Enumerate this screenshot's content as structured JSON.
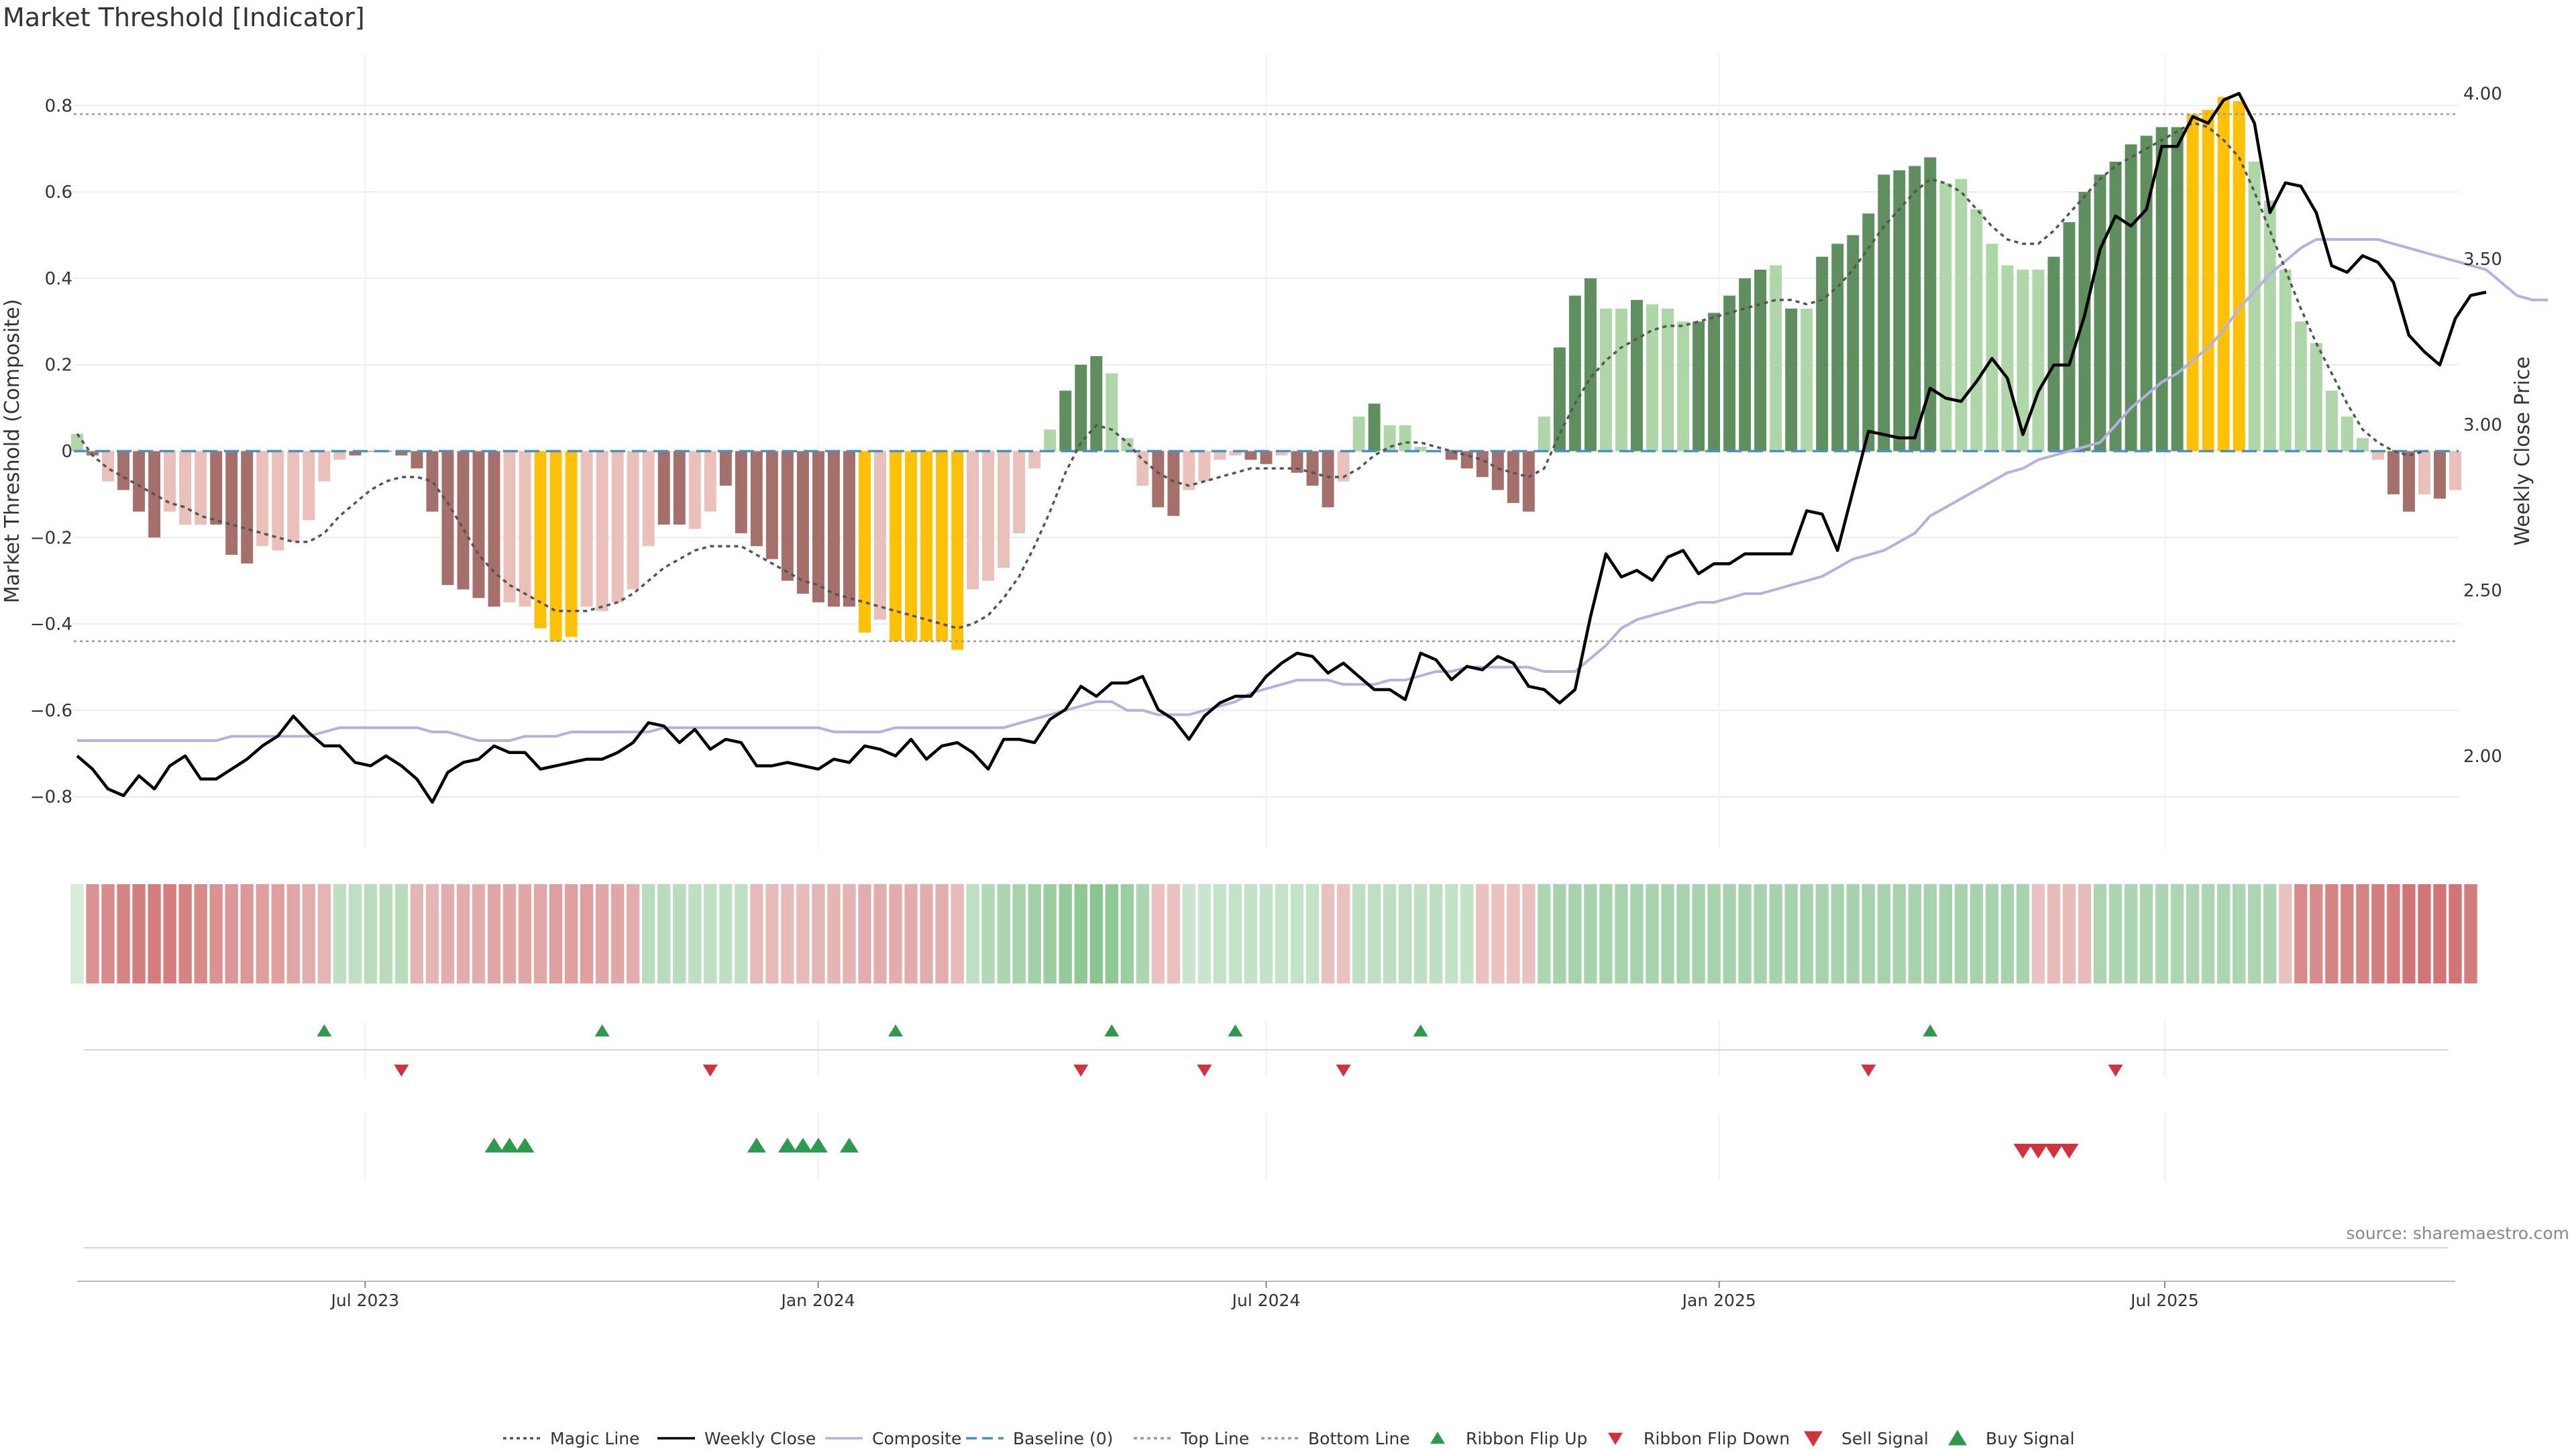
{
  "title": "Market Threshold [Indicator]",
  "source": "source: sharemaestro.com",
  "colors": {
    "strong_pos": "#5f8f5f",
    "weak_pos": "#aed6a8",
    "strong_neg": "#a5706b",
    "weak_neg": "#eac0bb",
    "extreme": "#ffc107",
    "close": "#000000",
    "composite": "#b6b0e0",
    "magic": "#555555",
    "baseline": "#4c8fc0",
    "threshold": "#999999",
    "buy": "#2e9a4e",
    "sell": "#d1333e"
  },
  "chart_data": {
    "type": "bar",
    "left_axis": {
      "label": "Market Threshold (Composite)",
      "ylim": [
        -0.92,
        0.92
      ],
      "ticks": [
        -0.8,
        -0.6,
        -0.4,
        -0.2,
        0,
        0.2,
        0.4,
        0.6,
        0.8
      ],
      "tick_labels": [
        "−0.8",
        "−0.6",
        "−0.4",
        "−0.2",
        "0",
        "0.2",
        "0.4",
        "0.6",
        "0.8"
      ]
    },
    "right_axis": {
      "label": "Weekly Close Price",
      "ylim": [
        1.72,
        4.12
      ],
      "ticks": [
        2.0,
        2.5,
        3.0,
        3.5,
        4.0
      ],
      "tick_labels": [
        "2.00",
        "2.50",
        "3.00",
        "3.50",
        "4.00"
      ]
    },
    "x_axis": {
      "start": "2023-03-06",
      "end": "2025-10-27",
      "ticks": [
        "2023-07-01",
        "2024-01-01",
        "2024-07-01",
        "2025-01-01",
        "2025-07-01"
      ],
      "tick_labels": [
        "Jul 2023",
        "Jan 2024",
        "Jul 2024",
        "Jan 2025",
        "Jul 2025"
      ]
    },
    "top_line": 0.78,
    "bottom_line": -0.44,
    "composite_bars": [
      0.04,
      -0.01,
      -0.07,
      -0.09,
      -0.14,
      -0.2,
      -0.14,
      -0.17,
      -0.17,
      -0.17,
      -0.24,
      -0.26,
      -0.22,
      -0.23,
      -0.21,
      -0.16,
      -0.07,
      -0.02,
      -0.01,
      0,
      0,
      -0.01,
      -0.04,
      -0.14,
      -0.31,
      -0.32,
      -0.34,
      -0.36,
      -0.35,
      -0.36,
      -0.41,
      -0.44,
      -0.43,
      -0.36,
      -0.37,
      -0.35,
      -0.32,
      -0.22,
      -0.17,
      -0.17,
      -0.18,
      -0.14,
      -0.08,
      -0.19,
      -0.22,
      -0.25,
      -0.3,
      -0.33,
      -0.35,
      -0.36,
      -0.36,
      -0.42,
      -0.39,
      -0.44,
      -0.44,
      -0.44,
      -0.44,
      -0.46,
      -0.32,
      -0.3,
      -0.27,
      -0.19,
      -0.04,
      0.05,
      0.14,
      0.2,
      0.22,
      0.18,
      0.03,
      -0.08,
      -0.13,
      -0.15,
      -0.09,
      -0.07,
      -0.02,
      -0.01,
      -0.02,
      -0.03,
      -0.01,
      -0.05,
      -0.08,
      -0.13,
      -0.07,
      0.08,
      0.11,
      0.06,
      0.06,
      0.01,
      0,
      -0.02,
      -0.04,
      -0.06,
      -0.09,
      -0.12,
      -0.14,
      0.08,
      0.24,
      0.36,
      0.4,
      0.33,
      0.33,
      0.35,
      0.34,
      0.33,
      0.3,
      0.3,
      0.32,
      0.36,
      0.4,
      0.42,
      0.43,
      0.33,
      0.33,
      0.45,
      0.48,
      0.5,
      0.55,
      0.64,
      0.65,
      0.66,
      0.68,
      0.62,
      0.63,
      0.56,
      0.48,
      0.43,
      0.42,
      0.42,
      0.45,
      0.53,
      0.6,
      0.64,
      0.67,
      0.71,
      0.73,
      0.75,
      0.75,
      0.78,
      0.79,
      0.82,
      0.81,
      0.67,
      0.58,
      0.42,
      0.3,
      0.25,
      0.14,
      0.08,
      0.03,
      -0.02,
      -0.1,
      -0.14,
      -0.1,
      -0.11,
      -0.09
    ],
    "bar_colors": [
      "weak_pos",
      "strong_neg",
      "weak_neg",
      "strong_neg",
      "strong_neg",
      "strong_neg",
      "weak_neg",
      "weak_neg",
      "weak_neg",
      "strong_neg",
      "strong_neg",
      "strong_neg",
      "weak_neg",
      "weak_neg",
      "weak_neg",
      "weak_neg",
      "weak_neg",
      "weak_neg",
      "strong_neg",
      "strong_neg",
      "strong_neg",
      "strong_neg",
      "strong_neg",
      "strong_neg",
      "strong_neg",
      "strong_neg",
      "strong_neg",
      "strong_neg",
      "weak_neg",
      "weak_neg",
      "extreme",
      "extreme",
      "extreme",
      "weak_neg",
      "weak_neg",
      "weak_neg",
      "weak_neg",
      "weak_neg",
      "strong_neg",
      "strong_neg",
      "weak_neg",
      "weak_neg",
      "strong_neg",
      "strong_neg",
      "strong_neg",
      "strong_neg",
      "strong_neg",
      "strong_neg",
      "strong_neg",
      "strong_neg",
      "strong_neg",
      "extreme",
      "weak_neg",
      "extreme",
      "extreme",
      "extreme",
      "extreme",
      "extreme",
      "weak_neg",
      "weak_neg",
      "weak_neg",
      "weak_neg",
      "weak_neg",
      "weak_pos",
      "strong_pos",
      "strong_pos",
      "strong_pos",
      "weak_pos",
      "weak_pos",
      "weak_neg",
      "strong_neg",
      "strong_neg",
      "weak_neg",
      "weak_neg",
      "weak_neg",
      "weak_neg",
      "strong_neg",
      "strong_neg",
      "weak_neg",
      "strong_neg",
      "strong_neg",
      "strong_neg",
      "weak_neg",
      "weak_pos",
      "strong_pos",
      "weak_pos",
      "weak_pos",
      "weak_pos",
      "weak_pos",
      "strong_neg",
      "strong_neg",
      "strong_neg",
      "strong_neg",
      "strong_neg",
      "strong_neg",
      "weak_pos",
      "strong_pos",
      "strong_pos",
      "strong_pos",
      "weak_pos",
      "weak_pos",
      "strong_pos",
      "weak_pos",
      "weak_pos",
      "weak_pos",
      "strong_pos",
      "strong_pos",
      "strong_pos",
      "strong_pos",
      "strong_pos",
      "weak_pos",
      "strong_pos",
      "weak_pos",
      "strong_pos",
      "strong_pos",
      "strong_pos",
      "strong_pos",
      "strong_pos",
      "strong_pos",
      "strong_pos",
      "strong_pos",
      "weak_pos",
      "weak_pos",
      "weak_pos",
      "weak_pos",
      "weak_pos",
      "weak_pos",
      "weak_pos",
      "strong_pos",
      "strong_pos",
      "strong_pos",
      "strong_pos",
      "strong_pos",
      "strong_pos",
      "strong_pos",
      "strong_pos",
      "strong_pos",
      "extreme",
      "extreme",
      "extreme",
      "extreme",
      "weak_pos",
      "weak_pos",
      "weak_pos",
      "weak_pos",
      "weak_pos",
      "weak_pos",
      "weak_pos",
      "weak_pos",
      "weak_neg",
      "strong_neg",
      "strong_neg",
      "weak_neg",
      "strong_neg",
      "weak_neg"
    ],
    "weekly_close": [
      2.0,
      1.96,
      1.9,
      1.88,
      1.94,
      1.9,
      1.97,
      2.0,
      1.93,
      1.93,
      1.96,
      1.99,
      2.03,
      2.06,
      2.12,
      2.07,
      2.03,
      2.03,
      1.98,
      1.97,
      2.0,
      1.97,
      1.93,
      1.86,
      1.95,
      1.98,
      1.99,
      2.03,
      2.01,
      2.01,
      1.96,
      1.97,
      1.98,
      1.99,
      1.99,
      2.01,
      2.04,
      2.1,
      2.09,
      2.04,
      2.08,
      2.02,
      2.05,
      2.04,
      1.97,
      1.97,
      1.98,
      1.97,
      1.96,
      1.99,
      1.98,
      2.03,
      2.02,
      2.0,
      2.05,
      1.99,
      2.03,
      2.04,
      2.01,
      1.96,
      2.05,
      2.05,
      2.04,
      2.11,
      2.14,
      2.21,
      2.18,
      2.22,
      2.22,
      2.24,
      2.14,
      2.11,
      2.05,
      2.12,
      2.16,
      2.18,
      2.18,
      2.24,
      2.28,
      2.31,
      2.3,
      2.25,
      2.28,
      2.24,
      2.2,
      2.2,
      2.17,
      2.31,
      2.29,
      2.23,
      2.27,
      2.26,
      2.3,
      2.28,
      2.21,
      2.2,
      2.16,
      2.2,
      2.42,
      2.61,
      2.54,
      2.56,
      2.53,
      2.6,
      2.62,
      2.55,
      2.58,
      2.58,
      2.61,
      2.61,
      2.61,
      2.61,
      2.74,
      2.73,
      2.62,
      2.8,
      2.98,
      2.97,
      2.96,
      2.96,
      3.11,
      3.08,
      3.07,
      3.13,
      3.2,
      3.14,
      2.97,
      3.1,
      3.18,
      3.18,
      3.33,
      3.53,
      3.63,
      3.6,
      3.65,
      3.84,
      3.84,
      3.93,
      3.91,
      3.98,
      4.0,
      3.91,
      3.64,
      3.73,
      3.72,
      3.64,
      3.48,
      3.46,
      3.51,
      3.49,
      3.43,
      3.27,
      3.22,
      3.18,
      3.32,
      3.39,
      3.4
    ],
    "composite_line": [
      -0.67,
      -0.67,
      -0.67,
      -0.67,
      -0.67,
      -0.67,
      -0.67,
      -0.67,
      -0.67,
      -0.67,
      -0.66,
      -0.66,
      -0.66,
      -0.66,
      -0.66,
      -0.66,
      -0.65,
      -0.64,
      -0.64,
      -0.64,
      -0.64,
      -0.64,
      -0.64,
      -0.65,
      -0.65,
      -0.66,
      -0.67,
      -0.67,
      -0.67,
      -0.66,
      -0.66,
      -0.66,
      -0.65,
      -0.65,
      -0.65,
      -0.65,
      -0.65,
      -0.65,
      -0.64,
      -0.64,
      -0.64,
      -0.64,
      -0.64,
      -0.64,
      -0.64,
      -0.64,
      -0.64,
      -0.64,
      -0.64,
      -0.65,
      -0.65,
      -0.65,
      -0.65,
      -0.64,
      -0.64,
      -0.64,
      -0.64,
      -0.64,
      -0.64,
      -0.64,
      -0.64,
      -0.63,
      -0.62,
      -0.61,
      -0.6,
      -0.59,
      -0.58,
      -0.58,
      -0.6,
      -0.6,
      -0.61,
      -0.61,
      -0.61,
      -0.6,
      -0.59,
      -0.58,
      -0.56,
      -0.55,
      -0.54,
      -0.53,
      -0.53,
      -0.53,
      -0.54,
      -0.54,
      -0.54,
      -0.53,
      -0.53,
      -0.52,
      -0.51,
      -0.51,
      -0.5,
      -0.5,
      -0.5,
      -0.5,
      -0.5,
      -0.51,
      -0.51,
      -0.51,
      -0.48,
      -0.45,
      -0.41,
      -0.39,
      -0.38,
      -0.37,
      -0.36,
      -0.35,
      -0.35,
      -0.34,
      -0.33,
      -0.33,
      -0.32,
      -0.31,
      -0.3,
      -0.29,
      -0.27,
      -0.25,
      -0.24,
      -0.23,
      -0.21,
      -0.19,
      -0.15,
      -0.13,
      -0.11,
      -0.09,
      -0.07,
      -0.05,
      -0.04,
      -0.02,
      -0.01,
      0,
      0.01,
      0.02,
      0.06,
      0.1,
      0.13,
      0.16,
      0.18,
      0.21,
      0.24,
      0.28,
      0.33,
      0.37,
      0.41,
      0.44,
      0.47,
      0.49,
      0.49,
      0.49,
      0.49,
      0.49,
      0.48,
      0.47,
      0.46,
      0.45,
      0.44,
      0.43,
      0.42,
      0.39,
      0.36,
      0.35,
      0.35
    ],
    "magic_line": [
      0.04,
      -0.01,
      -0.04,
      -0.06,
      -0.08,
      -0.1,
      -0.12,
      -0.13,
      -0.15,
      -0.16,
      -0.17,
      -0.18,
      -0.19,
      -0.2,
      -0.21,
      -0.21,
      -0.19,
      -0.15,
      -0.12,
      -0.09,
      -0.07,
      -0.06,
      -0.06,
      -0.07,
      -0.12,
      -0.18,
      -0.24,
      -0.28,
      -0.31,
      -0.33,
      -0.35,
      -0.37,
      -0.37,
      -0.37,
      -0.36,
      -0.35,
      -0.33,
      -0.3,
      -0.27,
      -0.25,
      -0.23,
      -0.22,
      -0.22,
      -0.22,
      -0.24,
      -0.26,
      -0.28,
      -0.3,
      -0.31,
      -0.33,
      -0.34,
      -0.35,
      -0.36,
      -0.37,
      -0.38,
      -0.39,
      -0.4,
      -0.41,
      -0.4,
      -0.38,
      -0.34,
      -0.29,
      -0.22,
      -0.14,
      -0.05,
      0.02,
      0.06,
      0.05,
      0.02,
      -0.02,
      -0.05,
      -0.07,
      -0.08,
      -0.07,
      -0.06,
      -0.05,
      -0.04,
      -0.04,
      -0.04,
      -0.04,
      -0.05,
      -0.06,
      -0.06,
      -0.04,
      -0.01,
      0.01,
      0.02,
      0.02,
      0.01,
      0,
      -0.01,
      -0.02,
      -0.04,
      -0.05,
      -0.06,
      -0.04,
      0.04,
      0.11,
      0.17,
      0.21,
      0.24,
      0.26,
      0.28,
      0.29,
      0.29,
      0.3,
      0.31,
      0.32,
      0.33,
      0.34,
      0.35,
      0.35,
      0.34,
      0.35,
      0.38,
      0.42,
      0.47,
      0.52,
      0.56,
      0.6,
      0.63,
      0.62,
      0.6,
      0.56,
      0.52,
      0.49,
      0.48,
      0.48,
      0.51,
      0.55,
      0.59,
      0.63,
      0.66,
      0.68,
      0.7,
      0.72,
      0.74,
      0.76,
      0.75,
      0.72,
      0.68,
      0.6,
      0.51,
      0.42,
      0.33,
      0.25,
      0.18,
      0.11,
      0.05,
      0.02,
      0.0,
      -0.01,
      0
    ],
    "ribbon": [
      0.1,
      -0.55,
      -0.6,
      -0.65,
      -0.7,
      -0.7,
      -0.7,
      -0.65,
      -0.6,
      -0.55,
      -0.5,
      -0.5,
      -0.45,
      -0.45,
      -0.4,
      -0.35,
      -0.3,
      0.3,
      0.3,
      0.35,
      0.35,
      0.35,
      -0.3,
      -0.3,
      -0.35,
      -0.35,
      -0.35,
      -0.4,
      -0.4,
      -0.4,
      -0.4,
      -0.45,
      -0.45,
      -0.45,
      -0.4,
      -0.4,
      -0.35,
      0.35,
      0.35,
      0.35,
      0.3,
      0.3,
      0.3,
      0.3,
      -0.25,
      -0.25,
      -0.25,
      -0.25,
      -0.3,
      -0.3,
      -0.3,
      -0.35,
      -0.35,
      -0.35,
      -0.35,
      -0.35,
      -0.35,
      -0.25,
      0.3,
      0.4,
      0.45,
      0.5,
      0.55,
      0.6,
      0.65,
      0.7,
      0.75,
      0.7,
      0.6,
      0.45,
      -0.2,
      -0.2,
      0.2,
      0.2,
      0.25,
      0.25,
      0.25,
      0.25,
      0.25,
      0.25,
      0.25,
      -0.2,
      -0.2,
      0.3,
      0.3,
      0.3,
      0.3,
      0.3,
      0.3,
      0.25,
      0.25,
      -0.2,
      -0.2,
      -0.2,
      -0.2,
      0.45,
      0.5,
      0.5,
      0.5,
      0.5,
      0.5,
      0.5,
      0.5,
      0.5,
      0.5,
      0.5,
      0.5,
      0.5,
      0.5,
      0.5,
      0.5,
      0.5,
      0.5,
      0.5,
      0.5,
      0.5,
      0.5,
      0.5,
      0.5,
      0.5,
      0.5,
      0.5,
      0.5,
      0.5,
      0.5,
      0.5,
      0.5,
      -0.2,
      -0.25,
      -0.25,
      -0.25,
      0.45,
      0.45,
      0.45,
      0.45,
      0.45,
      0.45,
      0.45,
      0.45,
      0.45,
      0.45,
      0.45,
      0.45,
      -0.2,
      -0.6,
      -0.6,
      -0.65,
      -0.65,
      -0.65,
      -0.7,
      -0.7,
      -0.75,
      -0.75,
      -0.75,
      -0.75,
      -0.7
    ],
    "ribbon_flip_up": [
      16,
      34,
      53,
      67,
      75,
      87,
      120
    ],
    "ribbon_flip_down": [
      21,
      41,
      65,
      73,
      82,
      116,
      132
    ],
    "buy_signals": [
      27,
      28,
      29,
      44,
      46,
      47,
      48,
      50
    ],
    "sell_signals": [
      126,
      127,
      128,
      129
    ]
  },
  "legend": [
    {
      "key": "magic",
      "label": "Magic Line",
      "style": "dotted"
    },
    {
      "key": "close",
      "label": "Weekly Close",
      "style": "solid"
    },
    {
      "key": "composite",
      "label": "Composite",
      "style": "solid"
    },
    {
      "key": "baseline",
      "label": "Baseline (0)",
      "style": "dashed"
    },
    {
      "key": "threshold",
      "label": "Top Line",
      "style": "dotted"
    },
    {
      "key": "threshold",
      "label": "Bottom Line",
      "style": "dotted"
    },
    {
      "key": "buy",
      "label": "Ribbon Flip Up",
      "style": "tri-up"
    },
    {
      "key": "sell",
      "label": "Ribbon Flip Down",
      "style": "tri-down"
    },
    {
      "key": "sell",
      "label": "Sell Signal",
      "style": "tri-down-big"
    },
    {
      "key": "buy",
      "label": "Buy Signal",
      "style": "tri-up-big"
    }
  ]
}
